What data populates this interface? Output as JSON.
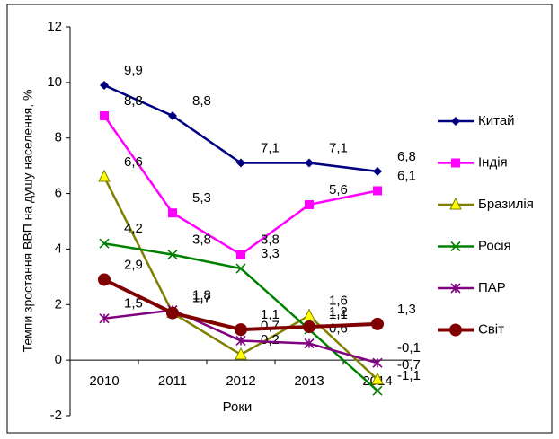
{
  "chart_data": {
    "type": "line",
    "y_label": "Темпи зростання ВВП на душу населення, %",
    "x_label": "Роки",
    "categories": [
      "2010",
      "2011",
      "2012",
      "2013",
      "2014"
    ],
    "ylim": [
      -2,
      12
    ],
    "yticks": [
      -2,
      0,
      2,
      4,
      6,
      8,
      10,
      12
    ],
    "legend": "right",
    "series": [
      {
        "name": "Китай",
        "color": "#000080",
        "marker": "diamond",
        "values": [
          9.9,
          8.8,
          7.1,
          7.1,
          6.8
        ],
        "value_labels": [
          "9,9",
          "8,8",
          "7,1",
          "7,1",
          "6,8"
        ]
      },
      {
        "name": "Індія",
        "color": "#ff00ff",
        "marker": "square",
        "values": [
          8.8,
          5.3,
          3.8,
          5.6,
          6.1
        ],
        "value_labels": [
          "8,8",
          "5,3",
          "3,8",
          "5,6",
          "6,1"
        ]
      },
      {
        "name": "Бразилія",
        "color": "#808000",
        "marker": "triangle",
        "values": [
          6.6,
          1.7,
          0.2,
          1.6,
          -0.7
        ],
        "value_labels": [
          "6,6",
          "1,7",
          "0,2",
          "1,6",
          "-0,7"
        ]
      },
      {
        "name": "Росія",
        "color": "#008000",
        "marker": "x",
        "values": [
          4.2,
          3.8,
          3.3,
          1.1,
          -1.1
        ],
        "value_labels": [
          "4,2",
          "3,8",
          "3,3",
          "1,1",
          "-1,1"
        ]
      },
      {
        "name": "ПАР",
        "color": "#800080",
        "marker": "star",
        "values": [
          1.5,
          1.8,
          0.7,
          0.6,
          -0.1
        ],
        "value_labels": [
          "1,5",
          "1,8",
          "0,7",
          "0,6",
          "-0,1"
        ]
      },
      {
        "name": "Світ",
        "color": "#800000",
        "marker": "circle",
        "values": [
          2.9,
          1.7,
          1.1,
          1.2,
          1.3
        ],
        "value_labels": [
          "2,9",
          "1,7",
          "1,1",
          "1,2",
          "1,3"
        ]
      }
    ]
  }
}
